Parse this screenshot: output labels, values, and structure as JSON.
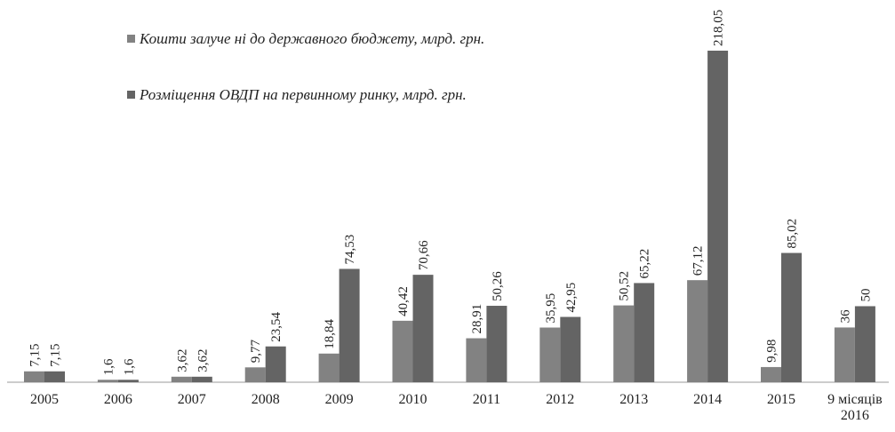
{
  "chart_data": {
    "type": "bar",
    "categories": [
      "2005",
      "2006",
      "2007",
      "2008",
      "2009",
      "2010",
      "2011",
      "2012",
      "2013",
      "2014",
      "2015",
      "9 місяців 2016"
    ],
    "series": [
      {
        "name": "Кошти залуче ні до державного бюджету, млрд. грн.",
        "color": "#828282",
        "values": [
          7.15,
          1.6,
          3.62,
          9.77,
          18.84,
          40.42,
          28.91,
          35.95,
          50.52,
          67.12,
          9.98,
          36
        ],
        "value_labels": [
          "7,15",
          "1,6",
          "3,62",
          "9,77",
          "18,84",
          "40,42",
          "28,91",
          "35,95",
          "50,52",
          "67,12",
          "9,98",
          "36"
        ]
      },
      {
        "name": "Розміщення ОВДП на первинному ринку, млрд. грн.",
        "color": "#646464",
        "values": [
          7.15,
          1.6,
          3.62,
          23.54,
          74.53,
          70.66,
          50.26,
          42.95,
          65.22,
          218.05,
          85.02,
          50
        ],
        "value_labels": [
          "7,15",
          "1,6",
          "3,62",
          "23,54",
          "74,53",
          "70,66",
          "50,26",
          "42,95",
          "65,22",
          "218,05",
          "85,02",
          "50"
        ]
      }
    ]
  }
}
